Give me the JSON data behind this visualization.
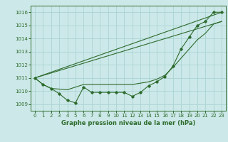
{
  "background_color": "#cce8e8",
  "grid_color": "#aad4d4",
  "line_color": "#2d6b2d",
  "xlabel": "Graphe pression niveau de la mer (hPa)",
  "ylim": [
    1008.5,
    1016.5
  ],
  "xlim": [
    -0.5,
    23.5
  ],
  "yticks": [
    1009,
    1010,
    1011,
    1012,
    1013,
    1014,
    1015,
    1016
  ],
  "xticks": [
    0,
    1,
    2,
    3,
    4,
    5,
    6,
    7,
    8,
    9,
    10,
    11,
    12,
    13,
    14,
    15,
    16,
    17,
    18,
    19,
    20,
    21,
    22,
    23
  ],
  "series_main": [
    1011.0,
    1010.5,
    1010.2,
    1009.8,
    1009.3,
    1009.1,
    1010.3,
    1009.9,
    1009.9,
    1009.9,
    1009.9,
    1009.9,
    1009.6,
    1009.9,
    1010.4,
    1010.7,
    1011.1,
    1011.9,
    1013.2,
    1014.1,
    1015.0,
    1015.3,
    1016.0,
    1016.0
  ],
  "series_smooth": [
    1011.0,
    1010.5,
    1010.2,
    1010.15,
    1010.1,
    1010.3,
    1010.5,
    1010.5,
    1010.5,
    1010.5,
    1010.5,
    1010.5,
    1010.5,
    1010.6,
    1010.7,
    1010.9,
    1011.2,
    1011.8,
    1012.5,
    1013.2,
    1013.9,
    1014.4,
    1015.1,
    1015.3
  ],
  "line1_x": [
    0,
    23
  ],
  "line1_y": [
    1011.0,
    1016.0
  ],
  "line2_x": [
    0,
    23
  ],
  "line2_y": [
    1011.0,
    1015.3
  ]
}
